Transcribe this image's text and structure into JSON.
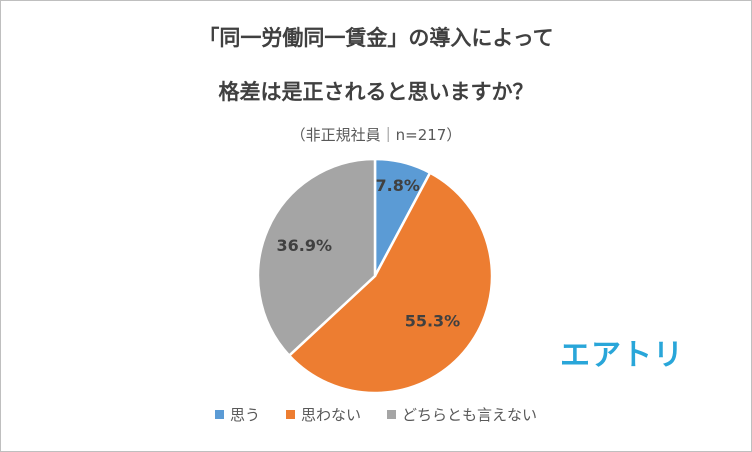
{
  "title_line1": "「同一労働同一賃金」の導入によって",
  "title_line2": "格差は是正されると思いますか？",
  "subtitle": "（非正規社員｜n=217）",
  "logo_text": "エアトリ",
  "colors": {
    "series_1": "#5b9bd5",
    "series_2": "#ed7d31",
    "series_3": "#a5a5a5",
    "logo": "#29a6d9"
  },
  "chart_data": {
    "type": "pie",
    "categories": [
      "思う",
      "思わない",
      "どちらとも言えない"
    ],
    "values": [
      7.8,
      55.3,
      36.9
    ],
    "data_labels": [
      "7.8%",
      "55.3%",
      "36.9%"
    ],
    "legend_position": "bottom"
  }
}
